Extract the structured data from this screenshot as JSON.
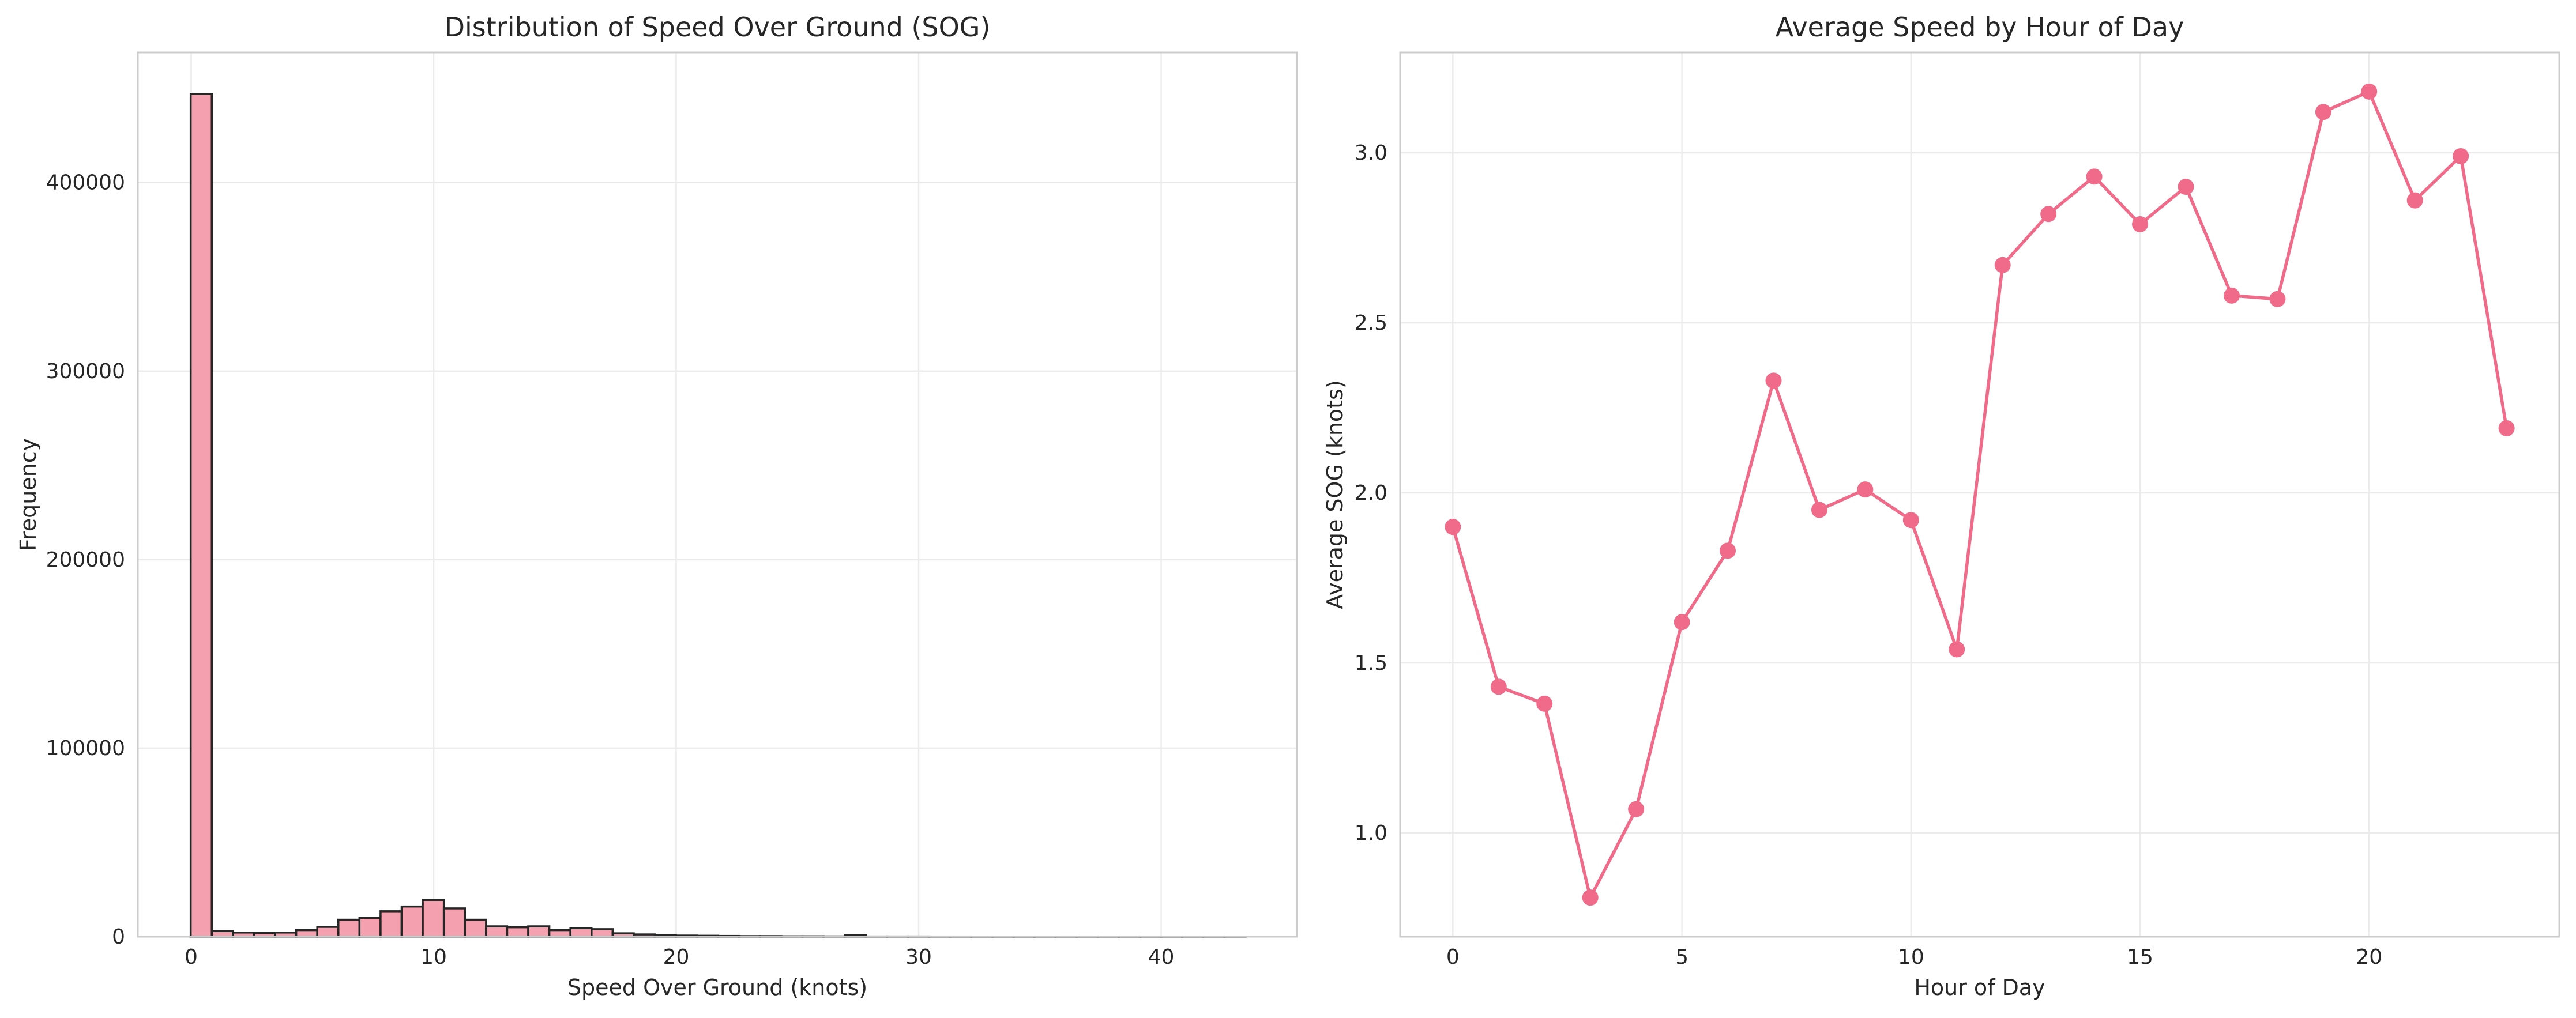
{
  "chart_data": [
    {
      "type": "bar",
      "title": "Distribution of Speed Over Ground (SOG)",
      "xlabel": "Speed Over Ground (knots)",
      "ylabel": "Frequency",
      "xlim": [
        -2.2,
        45.6
      ],
      "ylim": [
        0,
        469000
      ],
      "xticks": [
        0,
        10,
        20,
        30,
        40
      ],
      "yticks": [
        0,
        100000,
        200000,
        300000,
        400000
      ],
      "bin_width": 0.87,
      "bin_start": -0.02,
      "values": [
        447000,
        3000,
        2200,
        2000,
        2200,
        3500,
        5200,
        9000,
        10000,
        13500,
        16000,
        19500,
        15000,
        9000,
        5500,
        5000,
        5500,
        3500,
        4500,
        4000,
        1800,
        1200,
        800,
        600,
        500,
        400,
        300,
        300,
        200,
        200,
        150,
        800,
        100,
        100,
        100,
        80,
        80,
        60,
        60,
        50,
        50,
        40,
        40,
        30,
        30,
        30,
        20,
        20,
        20,
        20
      ],
      "bar_color": "#f5a0ae",
      "edge_color": "#262626",
      "grid": true
    },
    {
      "type": "line",
      "title": "Average Speed by Hour of Day",
      "xlabel": "Hour of Day",
      "ylabel": "Average SOG (knots)",
      "xlim": [
        -1.15,
        24.15
      ],
      "ylim": [
        0.695,
        3.295
      ],
      "xticks": [
        0,
        5,
        10,
        15,
        20
      ],
      "yticks": [
        "1.0",
        "1.5",
        "2.0",
        "2.5",
        "3.0"
      ],
      "x": [
        0,
        1,
        2,
        3,
        4,
        5,
        6,
        7,
        8,
        9,
        10,
        11,
        12,
        13,
        14,
        15,
        16,
        17,
        18,
        19,
        20,
        21,
        22,
        23
      ],
      "y": [
        1.9,
        1.43,
        1.38,
        0.81,
        1.07,
        1.62,
        1.83,
        2.33,
        1.95,
        2.01,
        1.92,
        1.54,
        2.67,
        2.82,
        2.93,
        2.79,
        2.9,
        2.58,
        2.57,
        3.12,
        3.18,
        2.86,
        2.99,
        2.19
      ],
      "line_color": "#f06a89",
      "marker": "circle",
      "grid": true
    }
  ]
}
